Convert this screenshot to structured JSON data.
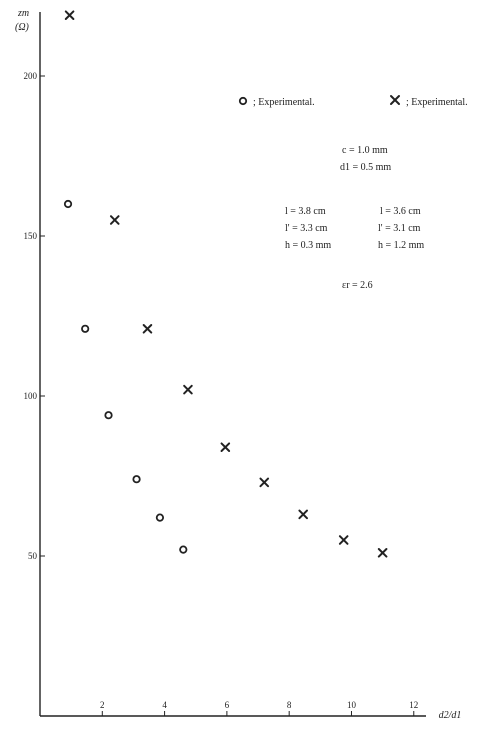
{
  "chart_data": {
    "type": "scatter",
    "ylabel": "zm",
    "ylabel_unit": "(Ω)",
    "xlabel": "d2/d1",
    "xlim": [
      0,
      12.2
    ],
    "ylim": [
      0,
      220
    ],
    "x_ticks": [
      2,
      4,
      6,
      8,
      10,
      12
    ],
    "y_ticks": [
      50,
      100,
      150,
      200
    ],
    "grid": false,
    "series": [
      {
        "name": "Experimental.",
        "marker": "circle",
        "x": [
          0.9,
          1.45,
          2.2,
          3.1,
          3.85,
          4.6
        ],
        "y": [
          160,
          121,
          94,
          74,
          62,
          52
        ]
      },
      {
        "name": "Experimental.",
        "marker": "cross",
        "x": [
          0.95,
          2.4,
          3.45,
          4.75,
          5.95,
          7.2,
          8.45,
          9.75,
          11.0
        ],
        "y": [
          219,
          155,
          121,
          102,
          84,
          73,
          63,
          55,
          51
        ]
      }
    ],
    "legend": [
      {
        "marker": "circle",
        "text": "; Experimental."
      },
      {
        "marker": "cross",
        "text": "; Experimental."
      }
    ],
    "parameters": {
      "common": [
        "c = 1.0 mm",
        "d1 = 0.5 mm"
      ],
      "circle_set": [
        "l = 3.8 cm",
        "l' = 3.3 cm",
        "h = 0.3 mm"
      ],
      "cross_set": [
        "l = 3.6 cm",
        "l' = 3.1 cm",
        "h = 1.2 mm"
      ],
      "epsilon": "εr = 2.6"
    }
  }
}
